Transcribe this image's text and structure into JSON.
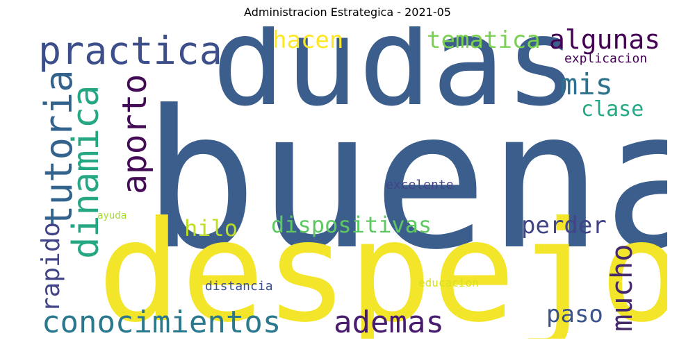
{
  "title": "Administracion Estrategica  - 2021-05",
  "words": {
    "buena": {
      "text": "buena",
      "color": "#3b5e8c"
    },
    "despejo": {
      "text": "despejo",
      "color": "#f3e52a"
    },
    "dudas": {
      "text": "dudas",
      "color": "#3b5e8c"
    },
    "practica": {
      "text": "practica",
      "color": "#3c4f8a"
    },
    "tutoria": {
      "text": "tutoria",
      "color": "#33638d"
    },
    "dinamica": {
      "text": "dinamica",
      "color": "#26a784"
    },
    "aporto": {
      "text": "aporto",
      "color": "#440b56"
    },
    "rapido": {
      "text": "rapido",
      "color": "#414487"
    },
    "conocimientos": {
      "text": "conocimientos",
      "color": "#2a788e"
    },
    "ademas": {
      "text": "ademas",
      "color": "#481c6e"
    },
    "mucho": {
      "text": "mucho",
      "color": "#46296a"
    },
    "algunas": {
      "text": "algunas",
      "color": "#440154"
    },
    "mis": {
      "text": "mis",
      "color": "#2c728e"
    },
    "hacen": {
      "text": "hacen",
      "color": "#fde725"
    },
    "tematica": {
      "text": "tematica",
      "color": "#7ad151"
    },
    "explicacion": {
      "text": "explicacion",
      "color": "#440154"
    },
    "clase": {
      "text": "clase",
      "color": "#22a884"
    },
    "perder": {
      "text": "perder",
      "color": "#414487"
    },
    "paso": {
      "text": "paso",
      "color": "#3a538b"
    },
    "hilo": {
      "text": "hilo",
      "color": "#bddf26"
    },
    "dispositivas": {
      "text": "dispositivas",
      "color": "#5ec962"
    },
    "excelente": {
      "text": "excelente",
      "color": "#414487"
    },
    "ayuda": {
      "text": "ayuda",
      "color": "#a8db34"
    },
    "distancia": {
      "text": "distancia",
      "color": "#3b528b"
    },
    "educacion": {
      "text": "educacion",
      "color": "#d8e219"
    }
  }
}
